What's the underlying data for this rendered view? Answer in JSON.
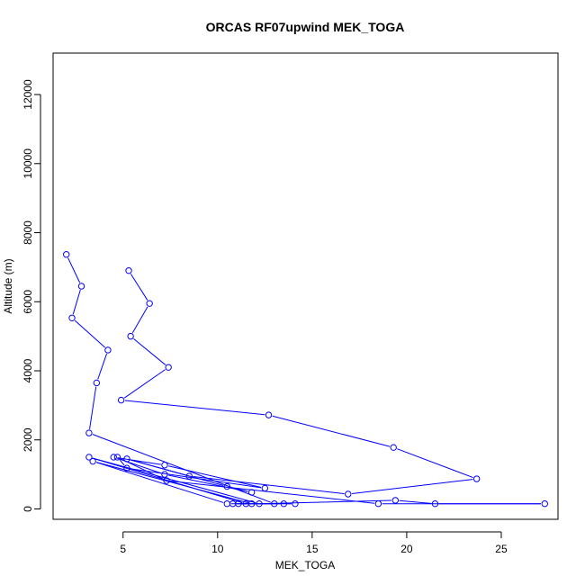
{
  "chart_data": {
    "type": "line",
    "title": "ORCAS RF07upwind MEK_TOGA",
    "xlabel": "MEK_TOGA",
    "ylabel": "Altitude (m)",
    "xlim": [
      1.3,
      28.0
    ],
    "ylim": [
      -300,
      13200
    ],
    "xticks": [
      5,
      10,
      15,
      20,
      25
    ],
    "yticks": [
      0,
      2000,
      4000,
      6000,
      8000,
      10000,
      12000
    ],
    "grid": false,
    "legend": "none",
    "series_color": "#0000ff",
    "points": [
      [
        5.3,
        6900
      ],
      [
        6.4,
        5950
      ],
      [
        5.4,
        5000
      ],
      [
        7.4,
        4100
      ],
      [
        4.9,
        3150
      ],
      [
        12.7,
        2720
      ],
      [
        19.3,
        1780
      ],
      [
        23.7,
        870
      ],
      [
        16.9,
        430
      ],
      [
        8.5,
        950
      ],
      [
        5.2,
        1450
      ],
      [
        10.5,
        650
      ],
      [
        11.8,
        480
      ],
      [
        7.2,
        1000
      ],
      [
        4.5,
        1500
      ],
      [
        7.2,
        1270
      ],
      [
        12.5,
        600
      ],
      [
        5.2,
        1180
      ],
      [
        4.7,
        1500
      ],
      [
        7.3,
        820
      ],
      [
        18.5,
        150
      ],
      [
        27.3,
        150
      ],
      [
        21.5,
        150
      ],
      [
        19.4,
        250
      ],
      [
        12.2,
        150
      ],
      [
        3.2,
        1500
      ],
      [
        11.5,
        150
      ],
      [
        10.5,
        150
      ],
      [
        3.4,
        1380
      ],
      [
        11.8,
        150
      ],
      [
        10.8,
        150
      ],
      [
        13.5,
        150
      ],
      [
        14.1,
        150
      ],
      [
        11.1,
        150
      ],
      [
        13.0,
        150
      ],
      [
        3.2,
        2200
      ],
      [
        3.6,
        3650
      ],
      [
        4.2,
        4600
      ],
      [
        2.3,
        5530
      ],
      [
        2.8,
        6450
      ],
      [
        2.0,
        7370
      ]
    ]
  }
}
